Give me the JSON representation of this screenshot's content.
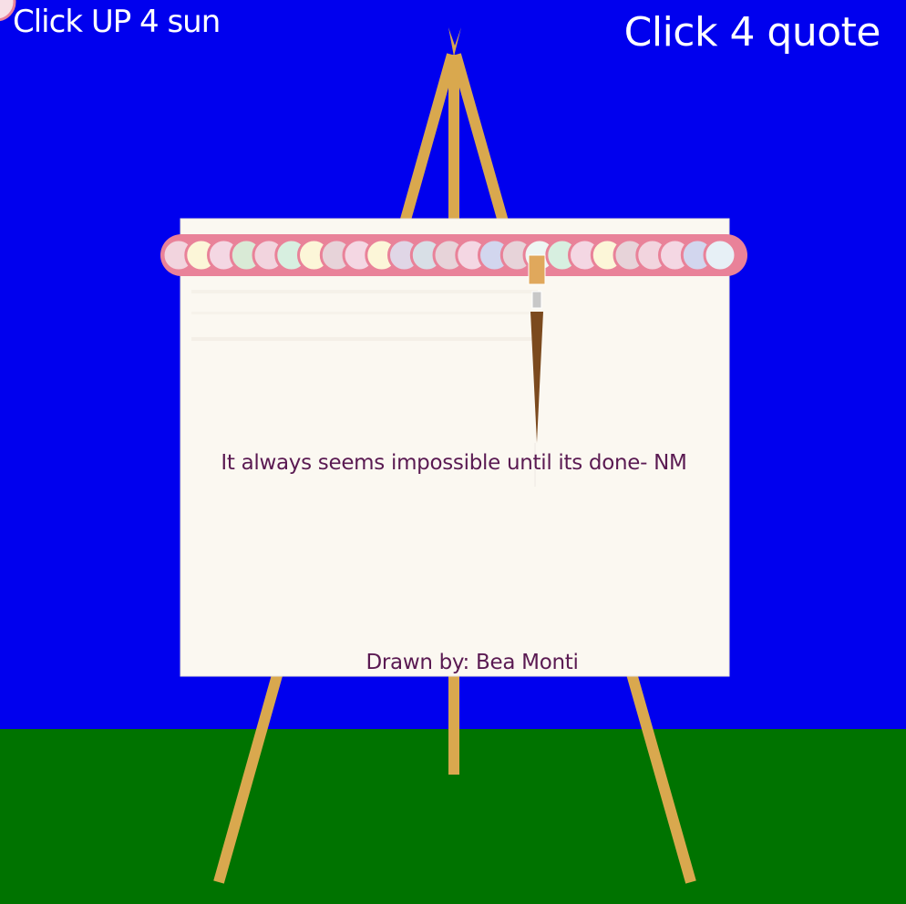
{
  "sketch": {
    "hint_sun": "Click UP 4 sun",
    "hint_quote": "Click 4 quote",
    "quote": "It always seems impossible until its done- NM",
    "credit": "Drawn by: Bea Monti"
  },
  "colors": {
    "sky": "#0000ee",
    "ground": "#007300",
    "easel_wood": "#d9a84e",
    "canvas": "#fbf8f1",
    "paint_tray": "#e98299",
    "text": "#5a1a52",
    "brush_handle": "#7b4a1e",
    "brush_tip": "#e0a85c",
    "brush_ferrule": "#c8c8c8"
  },
  "paint_blobs": [
    "#f2d4de",
    "#fcf6d8",
    "#f4d7e3",
    "#d9ead6",
    "#f2d4de",
    "#d7efe0",
    "#fcf6d8",
    "#e7d3d9",
    "#f4d7e3",
    "#fcf6d8",
    "#e0d6e6",
    "#d8dfe6",
    "#e7d3d9",
    "#f4d7e3",
    "#d2d6ee",
    "#e7d3d9",
    "#eef6f3",
    "#d7efe0",
    "#f4d7e3",
    "#fcf6d8",
    "#e7d3d9",
    "#f2d4de",
    "#f4d7e3",
    "#d2d6ee",
    "#e7f0f6"
  ]
}
